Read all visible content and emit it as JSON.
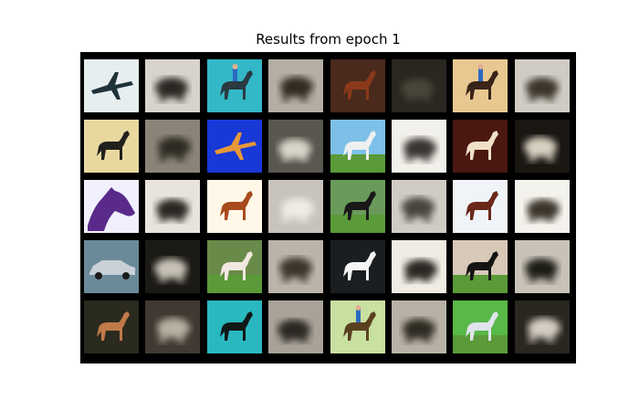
{
  "figure": {
    "title": "Results from epoch 1"
  },
  "grid": {
    "rows": 5,
    "cols": 8,
    "background": "#000000",
    "layout_note_removed": true,
    "tiles": [
      [
        {
          "kind": "real",
          "subject": "airplane",
          "bg": "#e6eef0",
          "fg": "#20323a"
        },
        {
          "kind": "reconstruction",
          "subject": "blur",
          "bg": "#d8d4cc",
          "fg": "#2a2520"
        },
        {
          "kind": "real",
          "subject": "horse-rider",
          "bg": "#33b8c8",
          "fg": "#2a3a40"
        },
        {
          "kind": "reconstruction",
          "subject": "blur",
          "bg": "#b4aea4",
          "fg": "#302a24"
        },
        {
          "kind": "real",
          "subject": "horse",
          "bg": "#4a2a1c",
          "fg": "#8a3a1a"
        },
        {
          "kind": "reconstruction",
          "subject": "blur",
          "bg": "#2a2620",
          "fg": "#4a4438"
        },
        {
          "kind": "real",
          "subject": "horse-rider",
          "bg": "#e8c890",
          "fg": "#3a2418"
        },
        {
          "kind": "reconstruction",
          "subject": "blur",
          "bg": "#d0ccc4",
          "fg": "#3a342c"
        }
      ],
      [
        {
          "kind": "real",
          "subject": "horse-dark",
          "bg": "#e8d8a0",
          "fg": "#20201c"
        },
        {
          "kind": "reconstruction",
          "subject": "blur",
          "bg": "#8a8478",
          "fg": "#2e2a24"
        },
        {
          "kind": "real",
          "subject": "airplane",
          "bg": "#1838d8",
          "fg": "#e89838"
        },
        {
          "kind": "reconstruction",
          "subject": "blur",
          "bg": "#5a5650",
          "fg": "#d8d4c8"
        },
        {
          "kind": "real",
          "subject": "horse-grass",
          "bg": "#7cc0e8",
          "fg": "#f0f0f0"
        },
        {
          "kind": "reconstruction",
          "subject": "blur",
          "bg": "#f2f0ea",
          "fg": "#3a3630"
        },
        {
          "kind": "real",
          "subject": "horse-white",
          "bg": "#4a1810",
          "fg": "#f0e0c8"
        },
        {
          "kind": "reconstruction",
          "subject": "blur",
          "bg": "#1a1612",
          "fg": "#d8d0c0"
        }
      ],
      [
        {
          "kind": "real",
          "subject": "horse-head",
          "bg": "#f0f0ff",
          "fg": "#5a2a8a"
        },
        {
          "kind": "reconstruction",
          "subject": "blur",
          "bg": "#e8e4dc",
          "fg": "#2a2622"
        },
        {
          "kind": "real",
          "subject": "horse-brown",
          "bg": "#fff8e8",
          "fg": "#a84a1c"
        },
        {
          "kind": "reconstruction",
          "subject": "blur",
          "bg": "#c8c4bc",
          "fg": "#f0ece4"
        },
        {
          "kind": "real",
          "subject": "horse-black",
          "bg": "#6a9a5a",
          "fg": "#181818"
        },
        {
          "kind": "reconstruction",
          "subject": "blur",
          "bg": "#d0ccc4",
          "fg": "#4a443c"
        },
        {
          "kind": "real",
          "subject": "horse-brown",
          "bg": "#f0f4f8",
          "fg": "#6a2818"
        },
        {
          "kind": "reconstruction",
          "subject": "blur",
          "bg": "#f4f2ec",
          "fg": "#3a342c"
        }
      ],
      [
        {
          "kind": "real",
          "subject": "car",
          "bg": "#6a8a9a",
          "fg": "#c8d0d8"
        },
        {
          "kind": "reconstruction",
          "subject": "blur",
          "bg": "#1c1a16",
          "fg": "#c8c2b6"
        },
        {
          "kind": "real",
          "subject": "horse-pinto",
          "bg": "#6a8a4a",
          "fg": "#f0e8e0"
        },
        {
          "kind": "reconstruction",
          "subject": "blur",
          "bg": "#bab4aa",
          "fg": "#3a342c"
        },
        {
          "kind": "real",
          "subject": "horse-white",
          "bg": "#1a1e20",
          "fg": "#f4f4f4"
        },
        {
          "kind": "reconstruction",
          "subject": "blur",
          "bg": "#f0ece4",
          "fg": "#2a2620"
        },
        {
          "kind": "real",
          "subject": "horse-black",
          "bg": "#d8c8b8",
          "fg": "#141414"
        },
        {
          "kind": "reconstruction",
          "subject": "blur",
          "bg": "#c8c2b8",
          "fg": "#1e1a16"
        }
      ],
      [
        {
          "kind": "real",
          "subject": "horse-brown",
          "bg": "#2a2a1e",
          "fg": "#c07a48"
        },
        {
          "kind": "reconstruction",
          "subject": "blur",
          "bg": "#403a32",
          "fg": "#b8b0a2"
        },
        {
          "kind": "real",
          "subject": "horse-dark",
          "bg": "#2ab8c0",
          "fg": "#101818"
        },
        {
          "kind": "reconstruction",
          "subject": "blur",
          "bg": "#a8a298",
          "fg": "#2a2620"
        },
        {
          "kind": "real",
          "subject": "horse-rider",
          "bg": "#c8e0a0",
          "fg": "#5a4020"
        },
        {
          "kind": "reconstruction",
          "subject": "blur",
          "bg": "#b8b2a6",
          "fg": "#2e2a24"
        },
        {
          "kind": "real",
          "subject": "horse-grey",
          "bg": "#58b848",
          "fg": "#e0e4ec"
        },
        {
          "kind": "reconstruction",
          "subject": "blur",
          "bg": "#2a2620",
          "fg": "#d4cec2"
        }
      ]
    ]
  }
}
